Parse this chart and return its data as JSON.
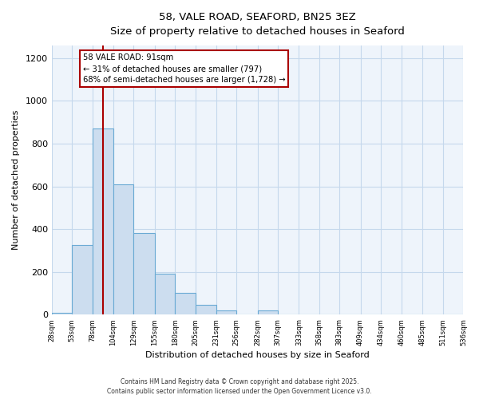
{
  "title": "58, VALE ROAD, SEAFORD, BN25 3EZ",
  "subtitle": "Size of property relative to detached houses in Seaford",
  "xlabel": "Distribution of detached houses by size in Seaford",
  "ylabel": "Number of detached properties",
  "bar_color": "#ccddef",
  "bar_edge_color": "#6aaad4",
  "vline_color": "#aa0000",
  "vline_x": 91,
  "bin_edges": [
    28,
    53,
    78,
    104,
    129,
    155,
    180,
    205,
    231,
    256,
    282,
    307,
    333,
    358,
    383,
    409,
    434,
    460,
    485,
    511,
    536
  ],
  "bar_heights": [
    10,
    325,
    870,
    610,
    380,
    190,
    100,
    45,
    20,
    0,
    18,
    0,
    0,
    0,
    0,
    0,
    0,
    0,
    0,
    0
  ],
  "tick_labels": [
    "28sqm",
    "53sqm",
    "78sqm",
    "104sqm",
    "129sqm",
    "155sqm",
    "180sqm",
    "205sqm",
    "231sqm",
    "256sqm",
    "282sqm",
    "307sqm",
    "333sqm",
    "358sqm",
    "383sqm",
    "409sqm",
    "434sqm",
    "460sqm",
    "485sqm",
    "511sqm",
    "536sqm"
  ],
  "ylim": [
    0,
    1260
  ],
  "yticks": [
    0,
    200,
    400,
    600,
    800,
    1000,
    1200
  ],
  "annotation_title": "58 VALE ROAD: 91sqm",
  "annotation_line1": "← 31% of detached houses are smaller (797)",
  "annotation_line2": "68% of semi-detached houses are larger (1,728) →",
  "box_color": "#aa0000",
  "background_color": "#ffffff",
  "plot_bg_color": "#eef4fb",
  "grid_color": "#c5d8ec",
  "footer1": "Contains HM Land Registry data © Crown copyright and database right 2025.",
  "footer2": "Contains public sector information licensed under the Open Government Licence v3.0."
}
